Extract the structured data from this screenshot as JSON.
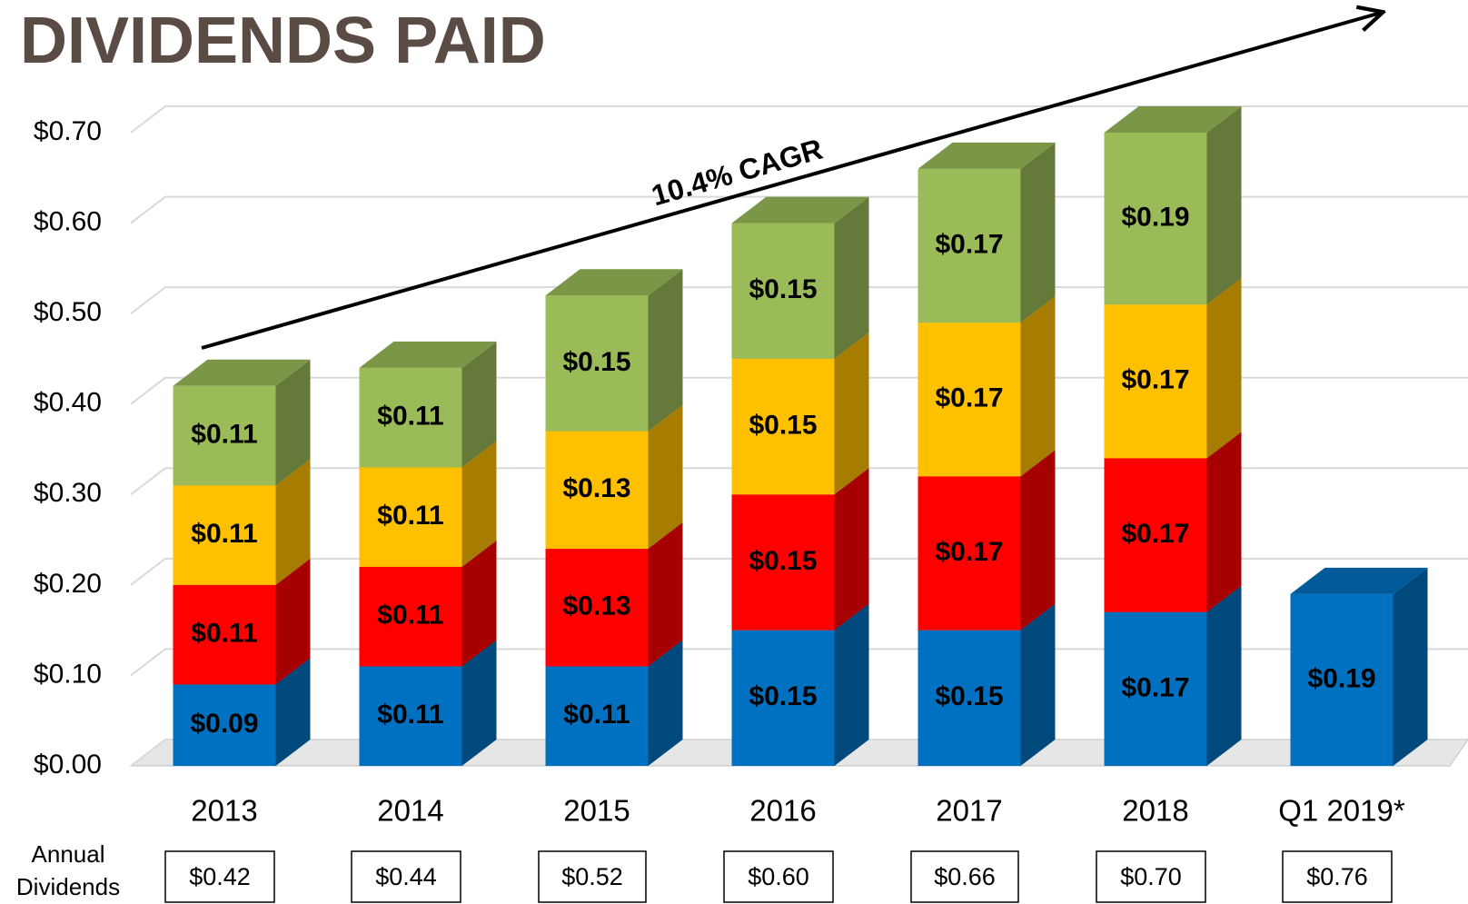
{
  "chart_data": {
    "type": "bar",
    "stacked": true,
    "title": "DIVIDENDS PAID",
    "annotation": "10.4% CAGR",
    "categories": [
      "2013",
      "2014",
      "2015",
      "2016",
      "2017",
      "2018",
      "Q1 2019*"
    ],
    "series": [
      {
        "color": "#0070c0",
        "values": [
          0.09,
          0.11,
          0.11,
          0.15,
          0.15,
          0.17,
          0.19
        ],
        "value_labels": [
          "$0.09",
          "$0.11",
          "$0.11",
          "$0.15",
          "$0.15",
          "$0.17",
          "$0.19"
        ]
      },
      {
        "color": "#ff0000",
        "values": [
          0.11,
          0.11,
          0.13,
          0.15,
          0.17,
          0.17,
          null
        ],
        "value_labels": [
          "$0.11",
          "$0.11",
          "$0.13",
          "$0.15",
          "$0.17",
          "$0.17",
          null
        ]
      },
      {
        "color": "#ffc000",
        "values": [
          0.11,
          0.11,
          0.13,
          0.15,
          0.17,
          0.17,
          null
        ],
        "value_labels": [
          "$0.11",
          "$0.11",
          "$0.13",
          "$0.15",
          "$0.17",
          "$0.17",
          null
        ]
      },
      {
        "color": "#9bbb59",
        "values": [
          0.11,
          0.11,
          0.15,
          0.15,
          0.17,
          0.19,
          null
        ],
        "value_labels": [
          "$0.11",
          "$0.11",
          "$0.15",
          "$0.15",
          "$0.17",
          "$0.19",
          null
        ]
      }
    ],
    "ylim": [
      0,
      0.7
    ],
    "yticks": [
      {
        "value": 0,
        "label": "$0.00"
      },
      {
        "value": 0.1,
        "label": "$0.10"
      },
      {
        "value": 0.2,
        "label": "$0.20"
      },
      {
        "value": 0.3,
        "label": "$0.30"
      },
      {
        "value": 0.4,
        "label": "$0.40"
      },
      {
        "value": 0.5,
        "label": "$0.50"
      },
      {
        "value": 0.6,
        "label": "$0.60"
      },
      {
        "value": 0.7,
        "label": "$0.70"
      }
    ],
    "grid": true,
    "annual_dividends": {
      "label": "Annual Dividends",
      "values": [
        0.42,
        0.44,
        0.52,
        0.6,
        0.66,
        0.7,
        0.76
      ],
      "value_labels": [
        "$0.42",
        "$0.44",
        "$0.52",
        "$0.60",
        "$0.66",
        "$0.70",
        "$0.76"
      ]
    }
  }
}
